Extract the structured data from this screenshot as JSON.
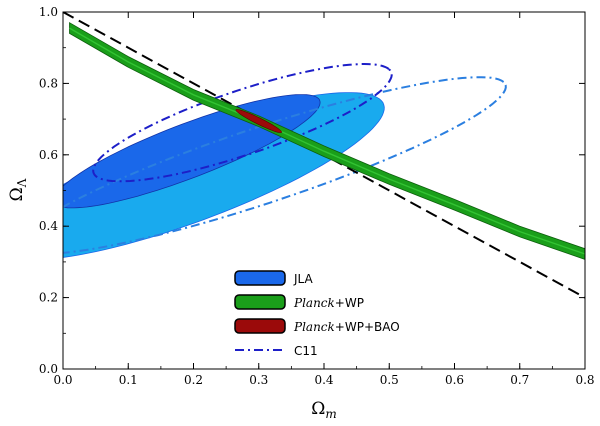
{
  "chart_data": {
    "type": "contour",
    "xlabel": "Ωm",
    "ylabel": "ΩΛ",
    "xlim": [
      0.0,
      0.8
    ],
    "ylim": [
      0.0,
      1.0
    ],
    "xticks": [
      "0.0",
      "0.1",
      "0.2",
      "0.3",
      "0.4",
      "0.5",
      "0.6",
      "0.7",
      "0.8"
    ],
    "yticks": [
      "0.0",
      "0.2",
      "0.4",
      "0.6",
      "0.8",
      "1.0"
    ],
    "legend_position": "bottom-center",
    "grid": false,
    "colors": {
      "jla_outer": "#19aaee",
      "jla_inner": "#1a68ea",
      "planck_wp": "#1a9e1a",
      "planck_wp_bao": "#9b0a0a",
      "c11_outer": "#2b7fe0",
      "c11_inner": "#1d1fc8",
      "flat_line": "#000000"
    },
    "series": [
      {
        "name": "JLA",
        "style": "filled-contours",
        "contour_95": {
          "center": [
            0.195,
            0.54
          ],
          "semi_major": 0.362,
          "semi_minor": 0.111,
          "angle_deg": 36.8
        },
        "contour_68": {
          "center": [
            0.19,
            0.61
          ],
          "semi_major": 0.25,
          "semi_minor": 0.066,
          "angle_deg": 36.8
        }
      },
      {
        "name": "Planck+WP",
        "style": "filled-band",
        "centerline": [
          [
            0.01,
            0.955
          ],
          [
            0.1,
            0.86
          ],
          [
            0.2,
            0.768
          ],
          [
            0.3,
            0.694
          ],
          [
            0.4,
            0.61
          ],
          [
            0.5,
            0.532
          ],
          [
            0.6,
            0.46
          ],
          [
            0.7,
            0.385
          ],
          [
            0.8,
            0.322
          ]
        ],
        "halfwidth": 0.015
      },
      {
        "name": "Planck+WP+BAO",
        "style": "filled-blob",
        "center": [
          0.302,
          0.692
        ],
        "extent": [
          [
            0.265,
            0.726
          ],
          [
            0.335,
            0.663
          ]
        ]
      },
      {
        "name": "C11",
        "style": "dash-dot-contours",
        "contour_95": {
          "center": [
            0.305,
            0.57
          ],
          "semi_major": 0.438,
          "semi_minor": 0.095,
          "angle_deg": 32.3
        },
        "contour_68": {
          "center": [
            0.275,
            0.69
          ],
          "semi_major": 0.27,
          "semi_minor": 0.08,
          "angle_deg": 33.8
        }
      },
      {
        "name": "",
        "style": "dashed-line",
        "points": [
          [
            0.0,
            1.0
          ],
          [
            0.8,
            0.2
          ]
        ]
      }
    ],
    "legend": [
      {
        "label_italic": "",
        "label_rest": "JLA",
        "key": "jla"
      },
      {
        "label_italic": "Planck",
        "label_rest": "+WP",
        "key": "planck"
      },
      {
        "label_italic": "Planck",
        "label_rest": "+WP+BAO",
        "key": "bao"
      },
      {
        "label_italic": "",
        "label_rest": "C11",
        "key": "c11"
      }
    ]
  }
}
